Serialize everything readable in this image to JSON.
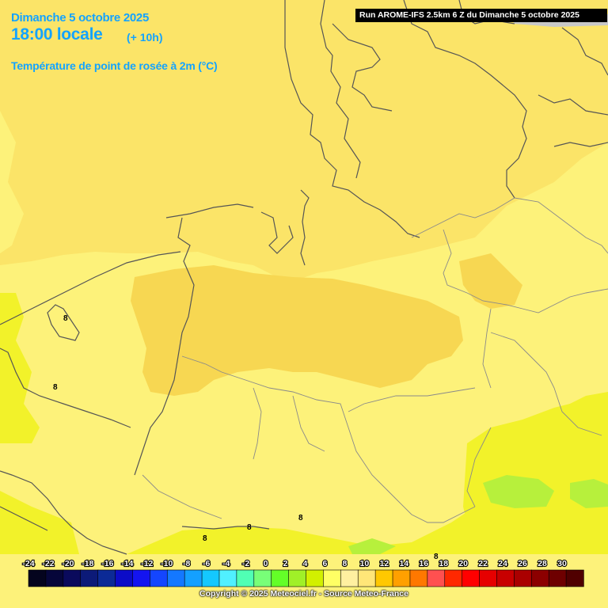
{
  "header": {
    "date": "Dimanche 5 octobre 2025",
    "time": "18:00 locale",
    "lead": "(+ 10h)",
    "parameter": "Température de point de rosée à 2m (°C)",
    "run": "Run AROME-IFS 2.5km 6 Z du Dimanche 5 octobre 2025"
  },
  "colors": {
    "background": "#fdf27a",
    "zone_8_10": "#fbe468",
    "zone_10_12": "#f7d752",
    "zone_6_8": "#f2f22a",
    "zone_4_6": "#b7f03c",
    "title": "#14a3ff",
    "coast_border": "#555555"
  },
  "contour_labels": [
    "8",
    "8",
    "8",
    "8",
    "8",
    "8"
  ],
  "legend": {
    "ticks": [
      "-24",
      "-22",
      "-20",
      "-18",
      "-16",
      "-14",
      "-12",
      "-10",
      "-8",
      "-6",
      "-4",
      "-2",
      "0",
      "2",
      "4",
      "6",
      "8",
      "10",
      "12",
      "14",
      "16",
      "18",
      "20",
      "22",
      "24",
      "26",
      "28",
      "30"
    ],
    "colors": [
      "#04041e",
      "#06063a",
      "#0a0a5c",
      "#0c1a78",
      "#0c2a96",
      "#0c0cc8",
      "#1414f0",
      "#1446ff",
      "#1478ff",
      "#14a0ff",
      "#14c8ff",
      "#50f0ff",
      "#50ffb4",
      "#78ff78",
      "#64ff28",
      "#a0f028",
      "#d2f000",
      "#ffff64",
      "#fff0a0",
      "#ffe678",
      "#ffc800",
      "#ffa000",
      "#ff7800",
      "#ff5050",
      "#ff2800",
      "#ff0000",
      "#e60000",
      "#c80000",
      "#aa0000",
      "#8c0000",
      "#6e0000",
      "#500000"
    ]
  },
  "copyright": "Copyright © 2025 Meteociel.fr - Source Meteo-France"
}
